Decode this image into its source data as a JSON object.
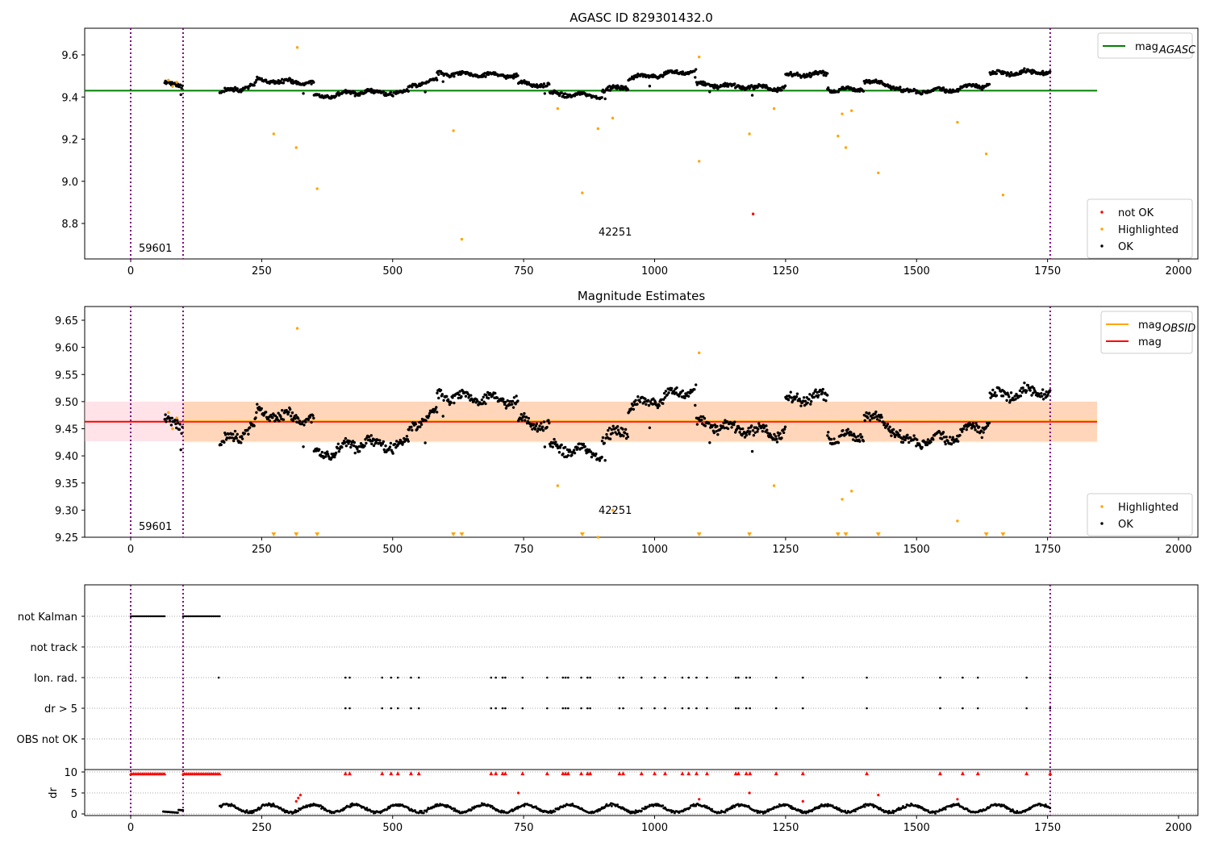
{
  "chart_data": [
    {
      "type": "scatter",
      "title": "AGASC ID 829301432.0",
      "xlim": [
        -88,
        2025
      ],
      "ylim": [
        8.63,
        9.72
      ],
      "xticks": [
        "0",
        "250",
        "500",
        "750",
        "1000",
        "1250",
        "1500",
        "1750",
        "2000"
      ],
      "yticks": [
        "8.8",
        "9.0",
        "9.2",
        "9.4",
        "9.6"
      ],
      "legend_lines": [
        {
          "name": "mag",
          "sub": "AGASC",
          "color": "#008000",
          "value": 9.43
        }
      ],
      "legend_points": [
        {
          "name": "not OK",
          "color": "#ff0000"
        },
        {
          "name": "Highlighted",
          "color": "#ffa500"
        },
        {
          "name": "OK",
          "color": "#000000"
        }
      ],
      "highlighted": [
        [
          72,
          9.48
        ],
        [
          80,
          9.45
        ],
        [
          88,
          9.47
        ],
        [
          273,
          9.225
        ],
        [
          316,
          9.16
        ],
        [
          318,
          9.635
        ],
        [
          356,
          8.965
        ],
        [
          616,
          9.24
        ],
        [
          632,
          8.725
        ],
        [
          815,
          9.345
        ],
        [
          862,
          8.945
        ],
        [
          892,
          9.25
        ],
        [
          920,
          9.3
        ],
        [
          1085,
          9.59
        ],
        [
          1085,
          9.095
        ],
        [
          1181,
          9.225
        ],
        [
          1228,
          9.345
        ],
        [
          1350,
          9.215
        ],
        [
          1358,
          9.32
        ],
        [
          1365,
          9.16
        ],
        [
          1376,
          9.335
        ],
        [
          1427,
          9.04
        ],
        [
          1578,
          9.28
        ],
        [
          1633,
          9.13
        ],
        [
          1665,
          8.935
        ]
      ],
      "not_ok": [
        [
          1188,
          8.845
        ]
      ],
      "annotations": [
        "59601",
        "42251"
      ]
    },
    {
      "type": "scatter",
      "title": "Magnitude Estimates",
      "xlim": [
        -88,
        2025
      ],
      "ylim": [
        9.25,
        9.675
      ],
      "xticks": [
        "0",
        "250",
        "500",
        "750",
        "1000",
        "1250",
        "1500",
        "1750",
        "2000"
      ],
      "yticks": [
        "9.25",
        "9.30",
        "9.35",
        "9.40",
        "9.45",
        "9.50",
        "9.55",
        "9.60",
        "9.65"
      ],
      "legend_lines": [
        {
          "name": "mag",
          "sub": "OBSID",
          "color": "#ffa500"
        },
        {
          "name": "mag",
          "sub": "",
          "color": "#ff0000",
          "value": 9.463
        }
      ],
      "legend_points": [
        {
          "name": "Highlighted",
          "color": "#ffa500"
        },
        {
          "name": "OK",
          "color": "#000000"
        }
      ],
      "band_obsid": [
        9.425,
        9.5
      ],
      "band_mag": [
        9.427,
        9.5
      ],
      "annotations": [
        "59601",
        "42251"
      ]
    },
    {
      "type": "scatter",
      "title": "",
      "xlim": [
        -88,
        2025
      ],
      "categories": [
        "not Kalman",
        "not track",
        "Ion. rad.",
        "dr > 5",
        "OBS not OK"
      ],
      "dr_label": "dr",
      "dr_ticks": [
        "0",
        "5",
        "10"
      ],
      "xticks": [
        "0",
        "250",
        "500",
        "750",
        "1000",
        "1250",
        "1500",
        "1750",
        "2000"
      ],
      "flag_x": [
        410,
        418,
        480,
        497,
        510,
        535,
        550,
        688,
        697,
        710,
        715,
        748,
        795,
        825,
        830,
        835,
        860,
        872,
        877,
        933,
        940,
        975,
        1000,
        1020,
        1053,
        1065,
        1080,
        1100,
        1155,
        1160,
        1175,
        1182,
        1232,
        1283,
        1405,
        1545,
        1588,
        1617,
        1710,
        1755
      ],
      "not_kalman_ranges": [
        [
          0,
          65
        ],
        [
          100,
          170
        ]
      ]
    }
  ],
  "segments": [
    [
      65,
      100,
      9.46,
      9.46
    ],
    [
      170,
      240,
      9.42,
      9.46
    ],
    [
      240,
      350,
      9.48,
      9.465
    ],
    [
      350,
      460,
      9.4,
      9.43
    ],
    [
      460,
      530,
      9.42,
      9.42
    ],
    [
      530,
      585,
      9.45,
      9.48
    ],
    [
      585,
      740,
      9.51,
      9.5
    ],
    [
      740,
      800,
      9.465,
      9.455
    ],
    [
      800,
      900,
      9.415,
      9.405
    ],
    [
      900,
      950,
      9.43,
      9.45
    ],
    [
      950,
      1080,
      9.49,
      9.525
    ],
    [
      1080,
      1250,
      9.46,
      9.44
    ],
    [
      1250,
      1330,
      9.5,
      9.51
    ],
    [
      1330,
      1400,
      9.435,
      9.435
    ],
    [
      1400,
      1470,
      9.48,
      9.445
    ],
    [
      1470,
      1580,
      9.425,
      9.435
    ],
    [
      1580,
      1640,
      9.44,
      9.46
    ],
    [
      1640,
      1755,
      9.51,
      9.52
    ]
  ],
  "vlines": [
    0,
    100,
    1755
  ]
}
